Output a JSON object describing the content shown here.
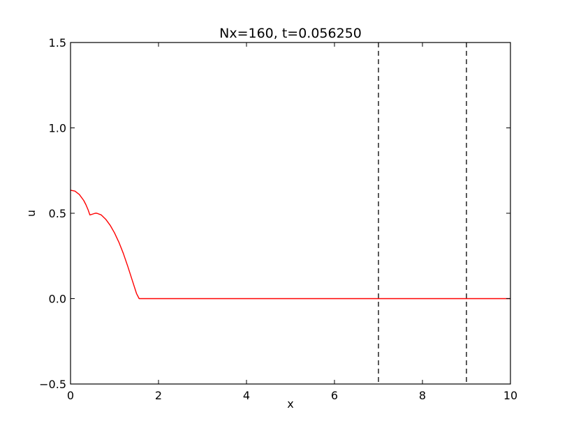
{
  "chart_data": {
    "type": "line",
    "title": "Nx=160, t=0.056250",
    "xlabel": "x",
    "ylabel": "u",
    "xlim": [
      0,
      10
    ],
    "ylim": [
      -0.5,
      1.5
    ],
    "xticks": [
      0,
      2,
      4,
      6,
      8,
      10
    ],
    "xtick_labels": [
      "0",
      "2",
      "4",
      "6",
      "8",
      "10"
    ],
    "yticks": [
      -0.5,
      0.0,
      0.5,
      1.0,
      1.5
    ],
    "ytick_labels": [
      "−0.5",
      "0.0",
      "0.5",
      "1.0",
      "1.5"
    ],
    "grid": false,
    "legend": "none",
    "series": [
      {
        "color": "#ff0000",
        "x": [
          0,
          0.1,
          0.2,
          0.3,
          0.35,
          0.4,
          0.44,
          0.5,
          0.56,
          0.6,
          0.7,
          0.8,
          0.9,
          1.0,
          1.1,
          1.2,
          1.3,
          1.4,
          1.5,
          1.56,
          2.0,
          4.0,
          6.0,
          8.0,
          10.0
        ],
        "y": [
          0.635,
          0.63,
          0.61,
          0.575,
          0.55,
          0.52,
          0.49,
          0.495,
          0.5,
          0.5,
          0.49,
          0.465,
          0.43,
          0.385,
          0.33,
          0.265,
          0.19,
          0.11,
          0.03,
          0.0,
          0.0,
          0.0,
          0.0,
          0.0,
          0.0
        ]
      }
    ],
    "vlines": [
      {
        "x": 7,
        "style": "dashed",
        "color": "#000000"
      },
      {
        "x": 9,
        "style": "dashed",
        "color": "#000000"
      }
    ]
  }
}
